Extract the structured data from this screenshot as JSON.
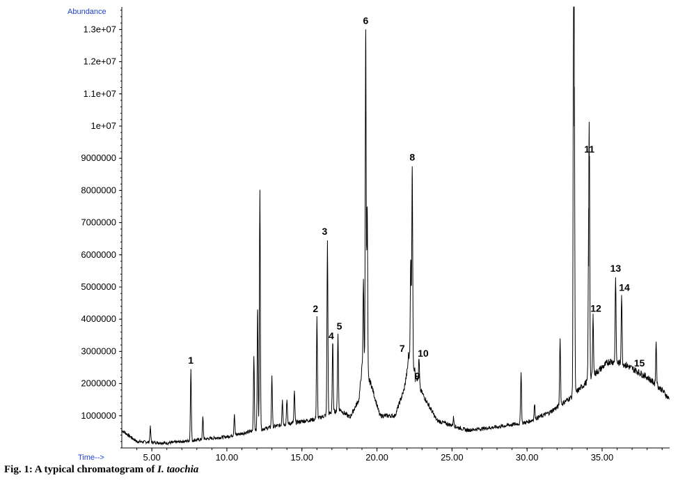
{
  "caption": {
    "prefix": "Fig. 1: A typical chromatogram of ",
    "species": "I. taochia"
  },
  "chart_data": {
    "type": "line",
    "title": "",
    "xlabel": "Time-->",
    "ylabel": "Abundance",
    "xlim": [
      3.0,
      39.5
    ],
    "ylim": [
      0,
      13700000
    ],
    "x_ticks": [
      5,
      10,
      15,
      20,
      25,
      30,
      35
    ],
    "x_tick_labels": [
      "5.00",
      "10.00",
      "15.00",
      "20.00",
      "25.00",
      "30.00",
      "35.00"
    ],
    "y_ticks": [
      1000000,
      2000000,
      3000000,
      4000000,
      5000000,
      6000000,
      7000000,
      8000000,
      9000000,
      10000000,
      11000000,
      12000000,
      13000000
    ],
    "y_tick_labels": [
      "1000000",
      "2000000",
      "3000000",
      "4000000",
      "5000000",
      "6000000",
      "7000000",
      "8000000",
      "9000000",
      "1e+07",
      "1.1e+07",
      "1.2e+07",
      "1.3e+07"
    ],
    "grid": false,
    "color": "#000000",
    "peaks": [
      {
        "label": "1",
        "rt": 7.6,
        "abundance": 2450000
      },
      {
        "label": "2",
        "rt": 16.0,
        "abundance": 4050000
      },
      {
        "label": "3",
        "rt": 16.7,
        "abundance": 6450000
      },
      {
        "label": "4",
        "rt": 17.05,
        "abundance": 3250000
      },
      {
        "label": "5",
        "rt": 17.4,
        "abundance": 3550000
      },
      {
        "label": "6",
        "rt": 19.25,
        "abundance": 13000000
      },
      {
        "label": "7",
        "rt": 22.1,
        "abundance": 2900000
      },
      {
        "label": "8",
        "rt": 22.35,
        "abundance": 8750000
      },
      {
        "label": "9",
        "rt": 22.55,
        "abundance": 2050000
      },
      {
        "label": "10",
        "rt": 22.8,
        "abundance": 2750000
      },
      {
        "label": "11",
        "rt": 34.15,
        "abundance": 9000000
      },
      {
        "label": "12",
        "rt": 34.4,
        "abundance": 4100000
      },
      {
        "label": "13",
        "rt": 35.9,
        "abundance": 5300000
      },
      {
        "label": "14",
        "rt": 36.3,
        "abundance": 4750000
      },
      {
        "label": "15",
        "rt": 37.3,
        "abundance": 2400000
      }
    ],
    "unlabeled_peaks": [
      {
        "rt": 4.9,
        "abundance": 650000
      },
      {
        "rt": 8.4,
        "abundance": 950000
      },
      {
        "rt": 10.5,
        "abundance": 1050000
      },
      {
        "rt": 11.8,
        "abundance": 2850000
      },
      {
        "rt": 12.05,
        "abundance": 4300000
      },
      {
        "rt": 12.2,
        "abundance": 8000000
      },
      {
        "rt": 13.0,
        "abundance": 2250000
      },
      {
        "rt": 13.7,
        "abundance": 1500000
      },
      {
        "rt": 14.0,
        "abundance": 1500000
      },
      {
        "rt": 14.5,
        "abundance": 1750000
      },
      {
        "rt": 19.1,
        "abundance": 5250000
      },
      {
        "rt": 19.35,
        "abundance": 7500000
      },
      {
        "rt": 22.25,
        "abundance": 5850000
      },
      {
        "rt": 25.1,
        "abundance": 950000
      },
      {
        "rt": 29.6,
        "abundance": 2350000
      },
      {
        "rt": 30.5,
        "abundance": 1350000
      },
      {
        "rt": 32.2,
        "abundance": 3400000
      },
      {
        "rt": 33.1,
        "abundance": 13700000
      },
      {
        "rt": 33.15,
        "abundance": 10000000
      },
      {
        "rt": 34.1,
        "abundance": 5650000
      },
      {
        "rt": 38.6,
        "abundance": 3300000
      }
    ],
    "baseline": [
      {
        "rt": 3.0,
        "abundance": 550000
      },
      {
        "rt": 4.0,
        "abundance": 200000
      },
      {
        "rt": 6.0,
        "abundance": 150000
      },
      {
        "rt": 8.0,
        "abundance": 250000
      },
      {
        "rt": 10.0,
        "abundance": 350000
      },
      {
        "rt": 12.0,
        "abundance": 550000
      },
      {
        "rt": 14.0,
        "abundance": 750000
      },
      {
        "rt": 16.0,
        "abundance": 900000
      },
      {
        "rt": 17.5,
        "abundance": 1200000
      },
      {
        "rt": 18.2,
        "abundance": 950000
      },
      {
        "rt": 18.8,
        "abundance": 1500000
      },
      {
        "rt": 19.0,
        "abundance": 2500000
      },
      {
        "rt": 19.6,
        "abundance": 2000000
      },
      {
        "rt": 20.2,
        "abundance": 1000000
      },
      {
        "rt": 21.2,
        "abundance": 1000000
      },
      {
        "rt": 21.8,
        "abundance": 1800000
      },
      {
        "rt": 22.2,
        "abundance": 2900000
      },
      {
        "rt": 22.9,
        "abundance": 1800000
      },
      {
        "rt": 24.0,
        "abundance": 850000
      },
      {
        "rt": 26.0,
        "abundance": 550000
      },
      {
        "rt": 28.0,
        "abundance": 650000
      },
      {
        "rt": 30.0,
        "abundance": 800000
      },
      {
        "rt": 31.5,
        "abundance": 1100000
      },
      {
        "rt": 33.0,
        "abundance": 1600000
      },
      {
        "rt": 34.5,
        "abundance": 2300000
      },
      {
        "rt": 35.5,
        "abundance": 2700000
      },
      {
        "rt": 36.5,
        "abundance": 2600000
      },
      {
        "rt": 38.0,
        "abundance": 2200000
      },
      {
        "rt": 39.0,
        "abundance": 1800000
      },
      {
        "rt": 39.5,
        "abundance": 1500000
      }
    ]
  }
}
